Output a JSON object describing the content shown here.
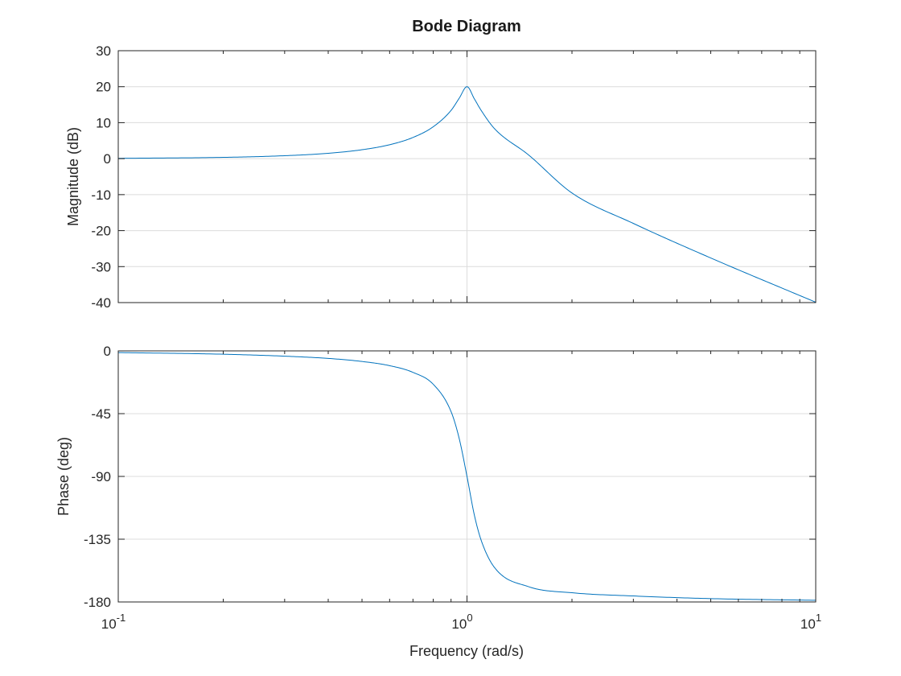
{
  "chart_data": {
    "type": "line",
    "title": "Bode Diagram",
    "xlabel": "Frequency (rad/s)",
    "xscale": "log",
    "xlim": [
      0.1,
      10
    ],
    "x_tick_labels": [
      {
        "value": 0.1,
        "base": "10",
        "exp": "-1"
      },
      {
        "value": 1,
        "base": "10",
        "exp": "0"
      },
      {
        "value": 10,
        "base": "10",
        "exp": "1"
      }
    ],
    "grid": true,
    "panels": [
      {
        "name": "magnitude",
        "ylabel": "Magnitude (dB)",
        "ylim": [
          -40,
          30
        ],
        "yticks": [
          30,
          20,
          10,
          0,
          -10,
          -20,
          -30,
          -40
        ],
        "series": [
          {
            "color": "#0072bd",
            "x": [
              0.1,
              0.2,
              0.3,
              0.4,
              0.5,
              0.6,
              0.7,
              0.8,
              0.9,
              0.95,
              1.0,
              1.05,
              1.1,
              1.2,
              1.5,
              2,
              3,
              5,
              10
            ],
            "y": [
              0.09,
              0.36,
              0.82,
              1.49,
              2.48,
              3.87,
              5.89,
              8.86,
              13.4,
              16.8,
              20.0,
              16.6,
              13.3,
              8.31,
              1.07,
              -9.54,
              -18.0,
              -27.6,
              -39.9
            ]
          }
        ]
      },
      {
        "name": "phase",
        "ylabel": "Phase (deg)",
        "ylim": [
          -180,
          0
        ],
        "yticks": [
          0,
          -45,
          -90,
          -135,
          -180
        ],
        "series": [
          {
            "color": "#0072bd",
            "x": [
              0.1,
              0.2,
              0.3,
              0.4,
              0.5,
              0.6,
              0.7,
              0.8,
              0.9,
              0.95,
              1.0,
              1.05,
              1.1,
              1.2,
              1.5,
              2,
              3,
              5,
              10
            ],
            "y": [
              -1.2,
              -2.4,
              -3.8,
              -5.4,
              -7.6,
              -10.6,
              -15.4,
              -23.9,
              -43.5,
              -62.9,
              -90,
              -117.8,
              -136.3,
              -155.4,
              -169.0,
              -173.4,
              -175.7,
              -177.6,
              -178.8
            ]
          }
        ]
      }
    ]
  }
}
